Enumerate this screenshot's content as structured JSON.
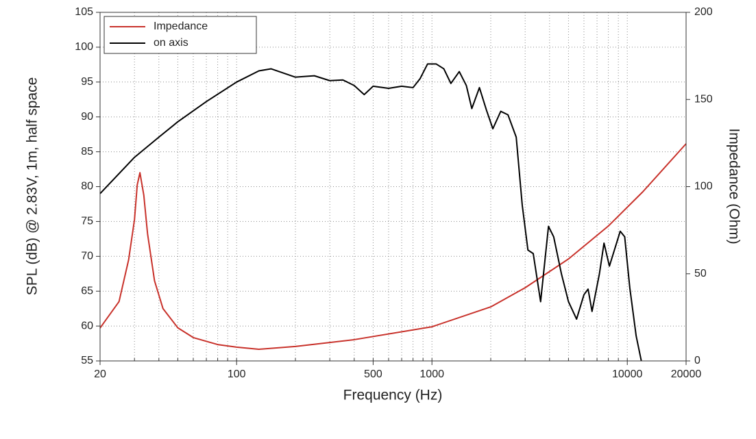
{
  "chart_data": {
    "type": "line",
    "xscale": "log",
    "grid": true,
    "legend": "upper left",
    "xlabel": "Frequency (Hz)",
    "ylabel": "SPL (dB) @ 2.83V, 1m, half space",
    "y2label": "Impedance (Ohm)",
    "xlim": [
      20,
      20000
    ],
    "xticks": [
      20,
      100,
      500,
      1000,
      10000,
      20000
    ],
    "xgrid": [
      30,
      40,
      50,
      60,
      70,
      80,
      90,
      100,
      200,
      300,
      400,
      500,
      600,
      700,
      800,
      900,
      1000,
      2000,
      3000,
      4000,
      5000,
      6000,
      7000,
      8000,
      9000,
      10000
    ],
    "ylim": [
      55,
      105
    ],
    "yticks": [
      55,
      60,
      65,
      70,
      75,
      80,
      85,
      90,
      95,
      100,
      105
    ],
    "y2lim": [
      0,
      200
    ],
    "y2ticks": [
      0,
      50,
      100,
      150,
      200
    ],
    "series": [
      {
        "name": "Impedance",
        "color": "#c8312a",
        "axis": "y2",
        "x": [
          20,
          25,
          28,
          30,
          31,
          32,
          33.5,
          35,
          38,
          42,
          50,
          60,
          80,
          100,
          130,
          200,
          400,
          1000,
          2000,
          3000,
          5000,
          8000,
          12000,
          20000
        ],
        "values": [
          18.9,
          34,
          58,
          81,
          101,
          108,
          95,
          73,
          46,
          30,
          19,
          13.4,
          9.4,
          7.9,
          6.7,
          8.3,
          12.2,
          19.6,
          31,
          42,
          58.5,
          77.4,
          97,
          124.6
        ]
      },
      {
        "name": "on axis",
        "color": "#000000",
        "x": [
          20,
          30,
          40,
          50,
          70,
          100,
          130,
          150,
          200,
          250,
          300,
          350,
          400,
          450,
          500,
          600,
          700,
          800,
          870,
          950,
          1050,
          1150,
          1250,
          1380,
          1500,
          1600,
          1750,
          1900,
          2050,
          2250,
          2450,
          2700,
          2900,
          3100,
          3300,
          3600,
          3950,
          4200,
          4600,
          5000,
          5500,
          6000,
          6300,
          6600,
          7200,
          7600,
          8100,
          8700,
          9200,
          9700,
          10300,
          11100,
          11800
        ],
        "values": [
          79,
          84.2,
          87.1,
          89.3,
          92.2,
          95,
          96.6,
          96.9,
          95.7,
          95.9,
          95.2,
          95.3,
          94.5,
          93.2,
          94.4,
          94.1,
          94.4,
          94.2,
          95.5,
          97.6,
          97.6,
          96.9,
          94.8,
          96.5,
          94.5,
          91.2,
          94.2,
          91,
          88.3,
          90.8,
          90.3,
          87.1,
          77.3,
          70.9,
          70.4,
          63.5,
          74.3,
          72.8,
          67.5,
          63.5,
          61,
          64.5,
          65.3,
          62.1,
          67.5,
          71.9,
          68.6,
          71.4,
          73.6,
          72.8,
          65.5,
          58.6,
          55
        ]
      }
    ]
  }
}
